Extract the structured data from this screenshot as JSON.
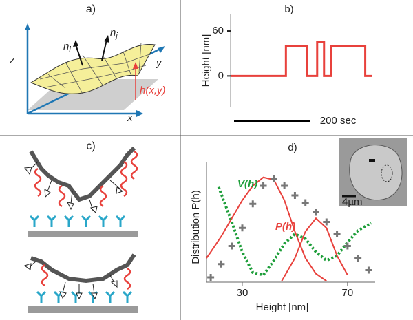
{
  "panels": {
    "a": {
      "label": "a)",
      "axes": [
        "z",
        "y",
        "x"
      ],
      "normal_symbol": "n",
      "normal_indices": [
        "i",
        "j"
      ],
      "height": "h(x,y)"
    },
    "c": {
      "label": "c)"
    }
  },
  "chart_data": [
    {
      "type": "step",
      "label": "b)",
      "ylabel": "Height [nm]",
      "x": [
        0,
        145,
        145,
        200,
        200,
        227,
        227,
        245,
        245,
        263,
        263,
        353,
        353,
        370
      ],
      "values": [
        0,
        0,
        40,
        40,
        0,
        0,
        45,
        45,
        0,
        0,
        40,
        40,
        0,
        0
      ],
      "color": "#e8413c",
      "xlim": [
        0,
        370
      ],
      "ylim": [
        -41,
        83
      ],
      "yticks": [
        0,
        60
      ],
      "scalebar": {
        "value": 200,
        "label": "200 sec"
      }
    },
    {
      "type": "line",
      "label": "d)",
      "xlabel": "Height [nm]",
      "ylabel": "Distribution P(h)",
      "xlim": [
        16.4,
        80.5
      ],
      "ylim": [
        0,
        1
      ],
      "xticks": [
        30,
        70
      ],
      "series": [
        {
          "name": "V(h)",
          "color": "#1e9e3a",
          "dashed": true,
          "x": [
            21,
            26,
            30,
            34,
            38,
            42,
            46,
            50,
            54,
            58,
            62,
            66,
            70,
            74,
            79
          ],
          "values": [
            0.79,
            0.5,
            0.25,
            0.08,
            0.06,
            0.18,
            0.32,
            0.4,
            0.36,
            0.25,
            0.18,
            0.22,
            0.33,
            0.43,
            0.49
          ]
        },
        {
          "name": "P(h)",
          "color": "#e8413c",
          "x": [
            16.4,
            18,
            22,
            26,
            30,
            34,
            38,
            42,
            46,
            50,
            54,
            58,
            62
          ],
          "values": [
            0.2,
            0.25,
            0.38,
            0.53,
            0.68,
            0.8,
            0.87,
            0.85,
            0.68,
            0.42,
            0.2,
            0.07,
            0.01
          ]
        },
        {
          "color": "#e8413c",
          "x": [
            45,
            50,
            54,
            58,
            62,
            66,
            70
          ],
          "values": [
            0.01,
            0.2,
            0.42,
            0.53,
            0.45,
            0.22,
            0.06
          ]
        },
        {
          "color": "#777777",
          "marker": "+",
          "x": [
            18,
            22,
            26,
            30,
            34,
            38,
            42,
            46,
            50,
            54,
            58,
            62,
            66,
            70,
            74,
            78
          ],
          "values": [
            0.04,
            0.15,
            0.3,
            0.45,
            0.65,
            0.8,
            0.86,
            0.8,
            0.72,
            0.66,
            0.58,
            0.5,
            0.4,
            0.3,
            0.2,
            0.1
          ]
        }
      ],
      "scalebar": {
        "value": 4,
        "label": "4µm"
      }
    }
  ]
}
